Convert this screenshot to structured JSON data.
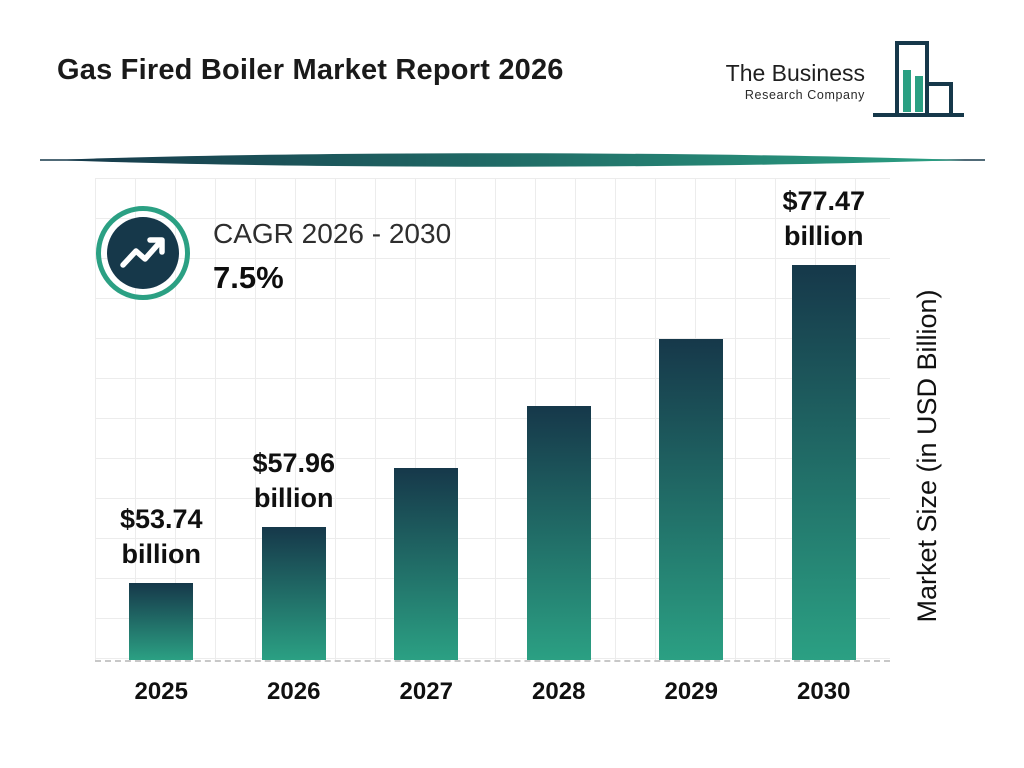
{
  "header": {
    "logo": {
      "name": "The Business",
      "subname": "Research Company",
      "icon": "bar-chart-logo-icon"
    }
  },
  "cagr": {
    "icon": "trending-up-icon",
    "label": "CAGR 2026 - 2030",
    "value": "7.5%"
  },
  "chart_data": {
    "type": "bar",
    "title": "Gas Fired Boiler Market Report 2026",
    "xlabel": "",
    "ylabel": "Market Size (in USD Billion)",
    "ylim": [
      48,
      84
    ],
    "grid": true,
    "legend": "none",
    "categories": [
      "2025",
      "2026",
      "2027",
      "2028",
      "2029",
      "2030"
    ],
    "values": [
      53.74,
      57.96,
      62.31,
      66.98,
      72.0,
      77.47
    ],
    "bar_labels": [
      {
        "amount": "$53.74",
        "unit": "billion"
      },
      {
        "amount": "$57.96",
        "unit": "billion"
      },
      null,
      null,
      null,
      {
        "amount": "$77.47",
        "unit": "billion"
      }
    ],
    "annotations": [
      "CAGR 2026 - 2030: 7.5%"
    ],
    "colors": {
      "bar_gradient_top": "#16384A",
      "bar_gradient_bottom": "#2BA083",
      "accent_navy": "#16384A",
      "accent_teal": "#2BA083",
      "grid_line": "#ececec"
    }
  }
}
